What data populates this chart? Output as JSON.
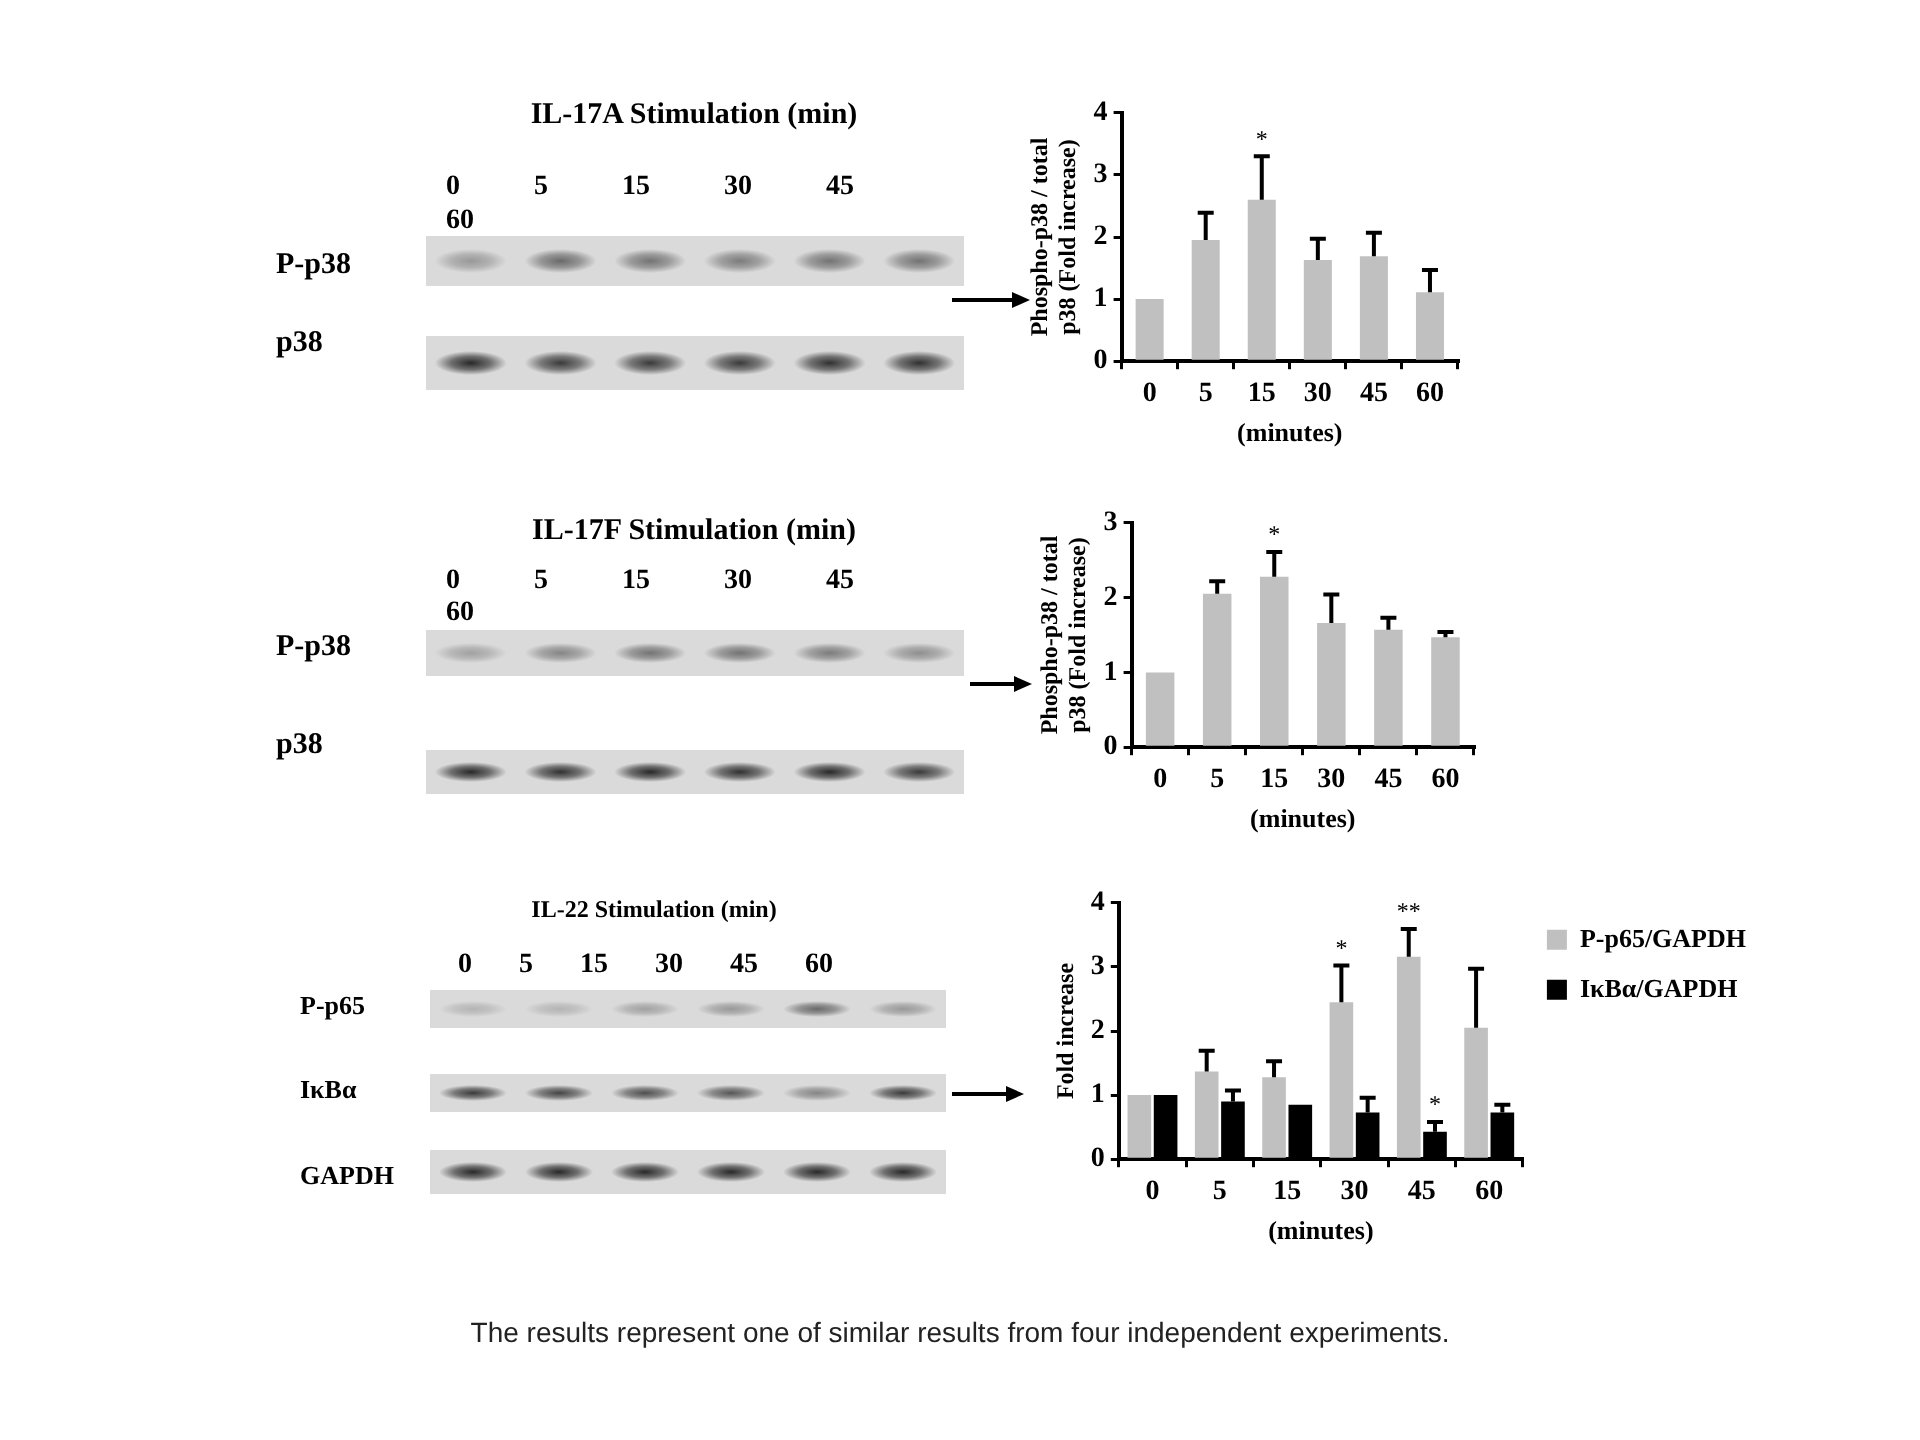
{
  "chart_data": [
    {
      "type": "other",
      "title": "IL-17A Stimulation (min)",
      "annotations": [
        "0 5 15 30 45 60",
        "P-p38",
        "p38"
      ]
    },
    {
      "type": "bar",
      "categories": [
        "0",
        "5",
        "15",
        "30",
        "45",
        "60"
      ],
      "values": [
        1.0,
        1.95,
        2.6,
        1.63,
        1.69,
        1.11
      ],
      "errors": [
        null,
        [
          1.95,
          2.39
        ],
        [
          2.6,
          3.3
        ],
        [
          1.63,
          1.97
        ],
        [
          1.69,
          2.07
        ],
        [
          1.11,
          1.47
        ]
      ],
      "color": "#c0c0c0",
      "xlabel": "(minutes)",
      "ylabel": "Phospho-p38 / total p38 (Fold increase)",
      "ylim": [
        0,
        4
      ],
      "yticks": [
        0,
        1,
        2,
        3,
        4
      ],
      "annotations": [
        {
          "text": "*",
          "x": "15",
          "y": 2.6
        }
      ]
    },
    {
      "type": "other",
      "title": "IL-17F Stimulation (min)",
      "annotations": [
        "0 5 15 30 45 60",
        "P-p38",
        "p38"
      ]
    },
    {
      "type": "bar",
      "categories": [
        "0",
        "5",
        "15",
        "30",
        "45",
        "60"
      ],
      "values": [
        1.0,
        2.05,
        2.28,
        1.66,
        1.57,
        1.47
      ],
      "errors": [
        null,
        [
          2.05,
          2.22
        ],
        [
          2.28,
          2.61
        ],
        [
          1.66,
          2.04
        ],
        [
          1.57,
          1.73
        ],
        [
          1.47,
          1.54
        ]
      ],
      "color": "#c0c0c0",
      "xlabel": "(minutes)",
      "ylabel": "Phospho-p38 / total p38 (Fold increase)",
      "ylim": [
        0,
        3
      ],
      "yticks": [
        0,
        1,
        2,
        3
      ],
      "annotations": [
        {
          "text": "*",
          "x": "15",
          "y": 2.28
        }
      ]
    },
    {
      "type": "other",
      "title": "IL-22 Stimulation (min)",
      "annotations": [
        "0 5 15 30 45 60",
        "P-p65",
        "IκBα",
        "GAPDH"
      ]
    },
    {
      "type": "bar",
      "categories": [
        "0",
        "5",
        "15",
        "30",
        "45",
        "60"
      ],
      "series": [
        {
          "name": "P-p65/GAPDH",
          "color": "#c0c0c0",
          "values": [
            1.0,
            1.37,
            1.28,
            2.45,
            3.16,
            2.05
          ],
          "errors": [
            null,
            [
              1.37,
              1.69
            ],
            [
              1.28,
              1.53
            ],
            [
              2.45,
              3.02
            ],
            [
              3.16,
              3.59
            ],
            [
              2.05,
              2.97
            ]
          ]
        },
        {
          "name": "IκBα/GAPDH",
          "color": "#000000",
          "values": [
            1.0,
            0.9,
            0.85,
            0.73,
            0.43,
            0.73
          ],
          "errors": [
            null,
            [
              0.9,
              1.07
            ],
            null,
            [
              0.73,
              0.96
            ],
            [
              0.43,
              0.58
            ],
            [
              0.73,
              0.85
            ]
          ]
        }
      ],
      "xlabel": "(minutes)",
      "ylabel": "Fold increase",
      "ylim": [
        0,
        4
      ],
      "yticks": [
        0,
        1,
        2,
        3,
        4
      ],
      "legend": "right",
      "annotations": [
        {
          "text": "*",
          "x": "30",
          "y": 2.45
        },
        {
          "text": "**",
          "x": "45",
          "y": 3.16
        },
        {
          "text": "*",
          "x": "45",
          "y": 0.43
        }
      ]
    },
    {
      "type": "other",
      "annotations": [
        "The results represent one of similar results from four independent experiments."
      ]
    }
  ]
}
